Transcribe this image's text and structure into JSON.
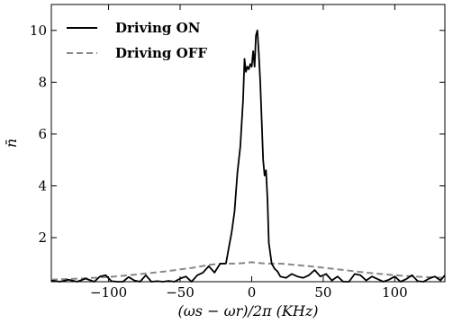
{
  "chart_data": {
    "type": "line",
    "title": "",
    "xlabel": "(ωs − ωr)/2π (KHz)",
    "ylabel": "n̄",
    "xlim": [
      -140,
      135
    ],
    "ylim": [
      0.3,
      11
    ],
    "xticks": [
      -100,
      -50,
      0,
      50,
      100
    ],
    "yticks": [
      2,
      4,
      6,
      8,
      10
    ],
    "grid": false,
    "legend_position": "top-left",
    "series": [
      {
        "name": "Driving ON",
        "color": "#000000",
        "dash": "solid",
        "x": [
          -140,
          -134,
          -128,
          -122,
          -116,
          -110,
          -106,
          -102,
          -98,
          -94,
          -90,
          -86,
          -82,
          -78,
          -74,
          -70,
          -66,
          -62,
          -58,
          -54,
          -50,
          -46,
          -42,
          -38,
          -34,
          -30,
          -26,
          -22,
          -18,
          -16,
          -14,
          -12,
          -10,
          -8,
          -6,
          -5,
          -4,
          -3,
          -2,
          -1,
          0,
          1,
          2,
          3,
          4,
          5,
          6,
          7,
          8,
          9,
          10,
          11,
          12,
          14,
          16,
          18,
          20,
          24,
          28,
          32,
          36,
          40,
          44,
          48,
          52,
          56,
          60,
          64,
          68,
          72,
          76,
          80,
          84,
          88,
          92,
          96,
          100,
          104,
          108,
          112,
          116,
          120,
          124,
          128,
          132,
          135
        ],
        "values": [
          0.35,
          0.3,
          0.38,
          0.3,
          0.42,
          0.3,
          0.5,
          0.55,
          0.32,
          0.3,
          0.3,
          0.48,
          0.35,
          0.3,
          0.55,
          0.3,
          0.32,
          0.3,
          0.33,
          0.3,
          0.42,
          0.5,
          0.3,
          0.55,
          0.65,
          0.9,
          0.65,
          1.0,
          1.0,
          1.6,
          2.2,
          3.0,
          4.5,
          5.5,
          7.3,
          8.9,
          8.4,
          8.6,
          8.5,
          8.7,
          8.6,
          9.2,
          8.6,
          9.8,
          10.0,
          9.1,
          8.0,
          6.5,
          5.0,
          4.4,
          4.6,
          3.5,
          1.8,
          1.0,
          0.8,
          0.7,
          0.5,
          0.45,
          0.6,
          0.5,
          0.45,
          0.55,
          0.75,
          0.5,
          0.6,
          0.35,
          0.5,
          0.3,
          0.3,
          0.6,
          0.55,
          0.35,
          0.5,
          0.4,
          0.3,
          0.38,
          0.5,
          0.3,
          0.4,
          0.55,
          0.32,
          0.3,
          0.42,
          0.5,
          0.35,
          0.55
        ]
      },
      {
        "name": "Driving OFF",
        "color": "#888888",
        "dash": "dashed",
        "x": [
          -140,
          -120,
          -100,
          -80,
          -60,
          -40,
          -30,
          -20,
          -10,
          0,
          10,
          20,
          30,
          40,
          60,
          80,
          100,
          120,
          135
        ],
        "values": [
          0.38,
          0.42,
          0.48,
          0.58,
          0.7,
          0.85,
          0.95,
          1.0,
          1.0,
          1.05,
          1.0,
          1.0,
          0.95,
          0.9,
          0.78,
          0.65,
          0.55,
          0.48,
          0.45
        ]
      }
    ]
  }
}
